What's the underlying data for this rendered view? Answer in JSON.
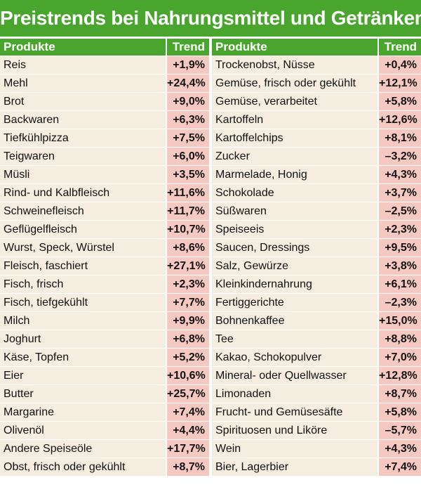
{
  "title": "Preistrends bei Nahrungsmittel und Getränken",
  "colors": {
    "header_green": "#4aa52e",
    "name_cell_bg": "#f5ede0",
    "trend_cell_bg": "#f6c8c2"
  },
  "columns": {
    "product_header": "Produkte",
    "trend_header": "Trend"
  },
  "left_rows": [
    {
      "product": "Reis",
      "trend": "+1,9%"
    },
    {
      "product": "Mehl",
      "trend": "+24,4%"
    },
    {
      "product": "Brot",
      "trend": "+9,0%"
    },
    {
      "product": "Backwaren",
      "trend": "+6,3%"
    },
    {
      "product": "Tiefkühlpizza",
      "trend": "+7,5%"
    },
    {
      "product": "Teigwaren",
      "trend": "+6,0%"
    },
    {
      "product": "Müsli",
      "trend": "+3,5%"
    },
    {
      "product": "Rind- und Kalbfleisch",
      "trend": "+11,6%"
    },
    {
      "product": "Schweinefleisch",
      "trend": "+11,7%"
    },
    {
      "product": "Geflügelfleisch",
      "trend": "+10,7%"
    },
    {
      "product": "Wurst, Speck, Würstel",
      "trend": "+8,6%"
    },
    {
      "product": "Fleisch, faschiert",
      "trend": "+27,1%"
    },
    {
      "product": "Fisch, frisch",
      "trend": "+2,3%"
    },
    {
      "product": "Fisch, tiefgekühlt",
      "trend": "+7,7%"
    },
    {
      "product": "Milch",
      "trend": "+9,9%"
    },
    {
      "product": "Joghurt",
      "trend": "+6,8%"
    },
    {
      "product": "Käse, Topfen",
      "trend": "+5,2%"
    },
    {
      "product": "Eier",
      "trend": "+10,6%"
    },
    {
      "product": "Butter",
      "trend": "+25,7%"
    },
    {
      "product": "Margarine",
      "trend": "+7,4%"
    },
    {
      "product": "Olivenöl",
      "trend": "+4,4%"
    },
    {
      "product": "Andere Speiseöle",
      "trend": "+17,7%"
    },
    {
      "product": "Obst, frisch oder gekühlt",
      "trend": "+8,7%"
    }
  ],
  "right_rows": [
    {
      "product": "Trockenobst, Nüsse",
      "trend": "+0,4%"
    },
    {
      "product": "Gemüse, frisch oder gekühlt",
      "trend": "+12,1%"
    },
    {
      "product": "Gemüse, verarbeitet",
      "trend": "+5,8%"
    },
    {
      "product": "Kartoffeln",
      "trend": "+12,6%"
    },
    {
      "product": "Kartoffelchips",
      "trend": "+8,1%"
    },
    {
      "product": "Zucker",
      "trend": "–3,2%"
    },
    {
      "product": "Marmelade, Honig",
      "trend": "+4,3%"
    },
    {
      "product": "Schokolade",
      "trend": "+3,7%"
    },
    {
      "product": "Süßwaren",
      "trend": "–2,5%"
    },
    {
      "product": "Speiseeis",
      "trend": "+2,3%"
    },
    {
      "product": "Saucen, Dressings",
      "trend": "+9,5%"
    },
    {
      "product": "Salz, Gewürze",
      "trend": "+3,8%"
    },
    {
      "product": "Kleinkindernahrung",
      "trend": "+6,1%"
    },
    {
      "product": "Fertiggerichte",
      "trend": "–2,3%"
    },
    {
      "product": "Bohnenkaffee",
      "trend": "+15,0%"
    },
    {
      "product": "Tee",
      "trend": "+8,8%"
    },
    {
      "product": "Kakao, Schokopulver",
      "trend": "+7,0%"
    },
    {
      "product": "Mineral- oder Quellwasser",
      "trend": "+12,8%"
    },
    {
      "product": "Limonaden",
      "trend": "+8,7%"
    },
    {
      "product": "Frucht- und Gemüsesäfte",
      "trend": "+5,8%"
    },
    {
      "product": "Spirituosen und Liköre",
      "trend": "–5,7%"
    },
    {
      "product": "Wein",
      "trend": "+4,3%"
    },
    {
      "product": "Bier, Lagerbier",
      "trend": "+7,4%"
    }
  ]
}
